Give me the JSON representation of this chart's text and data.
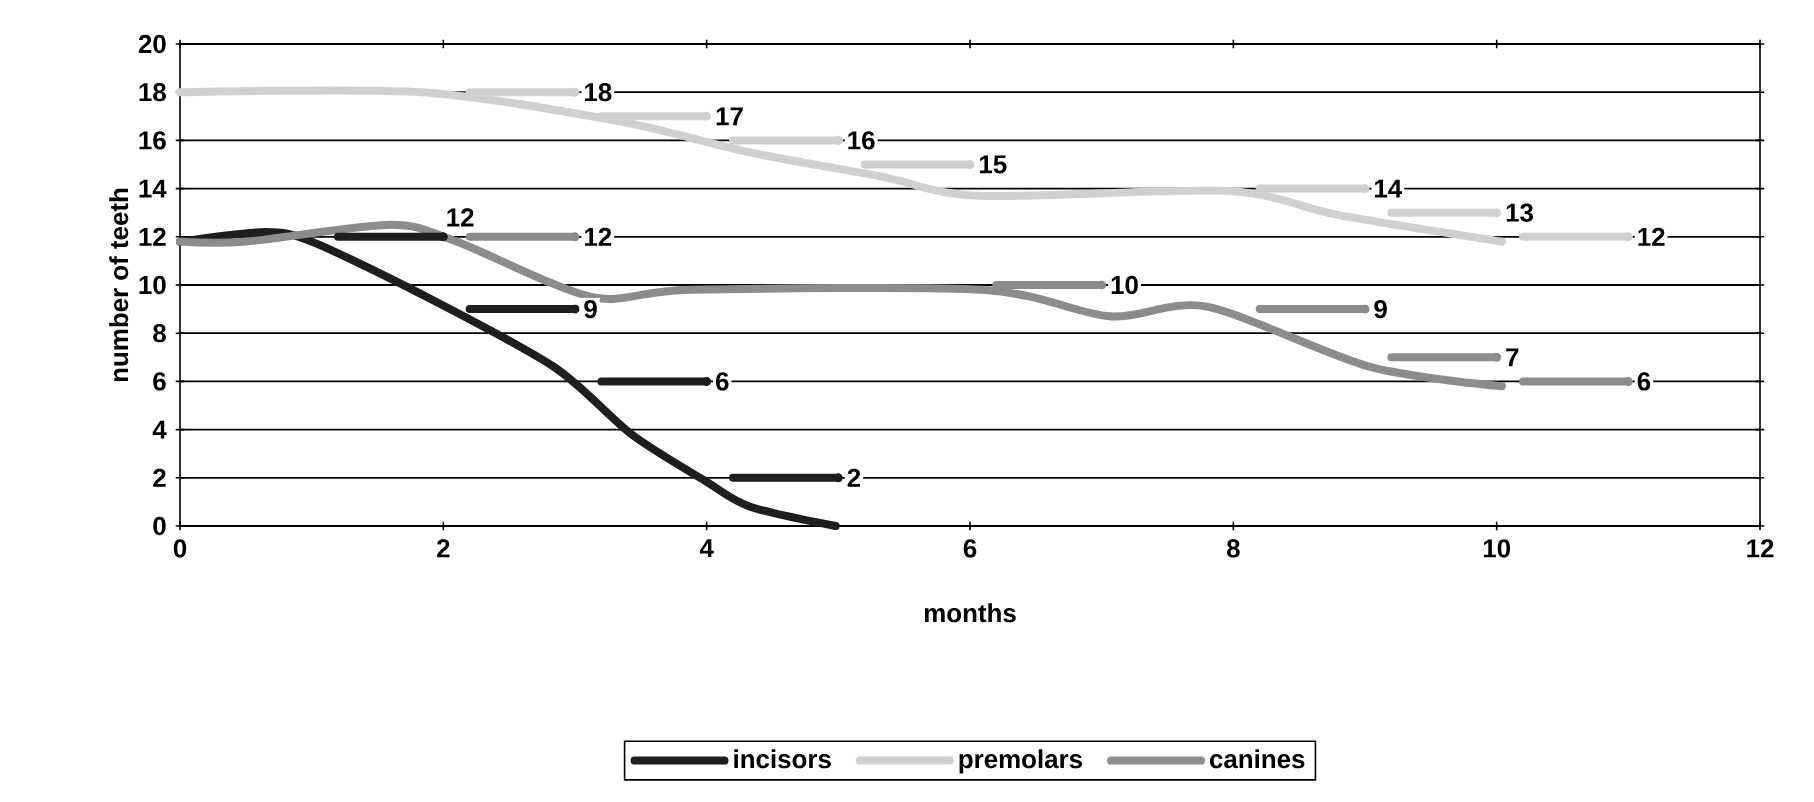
{
  "chart_data": {
    "type": "line",
    "xlabel": "months",
    "ylabel": "number of teeth",
    "xlim": [
      0,
      12
    ],
    "xticks": [
      0,
      2,
      4,
      6,
      8,
      10,
      12
    ],
    "ylim": [
      0,
      20
    ],
    "yticks": [
      0,
      2,
      4,
      6,
      8,
      10,
      12,
      14,
      16,
      18,
      20
    ],
    "grid": "y",
    "legend": "bottom",
    "series": [
      {
        "name": "incisors",
        "color": "#1e1e1e",
        "x": [
          0,
          0.65,
          1.0,
          1.84,
          2.84,
          3.43,
          3.98,
          4.33,
          4.98
        ],
        "values": [
          11.8,
          12.2,
          11.8,
          9.6,
          6.6,
          3.8,
          1.9,
          0.8,
          0
        ]
      },
      {
        "name": "premolars",
        "color": "#d0d0d0",
        "x": [
          0,
          1.84,
          3.33,
          4.33,
          5.33,
          6.07,
          7.96,
          8.8,
          10.04
        ],
        "values": [
          18,
          18,
          16.8,
          15.5,
          14.5,
          13.7,
          13.9,
          12.9,
          11.8
        ]
      },
      {
        "name": "canines",
        "color": "#8c8c8c",
        "x": [
          0,
          0.5,
          1.6,
          2.1,
          3.13,
          3.88,
          6.1,
          7.06,
          7.8,
          9.04,
          10.04
        ],
        "values": [
          11.8,
          11.8,
          12.5,
          11.8,
          9.5,
          9.8,
          9.8,
          8.7,
          9.1,
          6.6,
          5.8
        ]
      },
      {
        "type": "scatter",
        "color": "#1e1e1e",
        "x": [
          2,
          3,
          4,
          5
        ],
        "values": [
          12,
          9,
          6,
          2
        ],
        "xerrors": [
          [
            1.2,
            2
          ],
          [
            2.2,
            3
          ],
          [
            3.2,
            4
          ],
          [
            4.2,
            5
          ]
        ],
        "value_labels": [
          "12",
          "9",
          "6",
          "2"
        ]
      },
      {
        "type": "scatter",
        "color": "#d0d0d0",
        "x": [
          3,
          4,
          5,
          6,
          9,
          10,
          11
        ],
        "values": [
          18,
          17,
          16,
          15,
          14,
          13,
          12
        ],
        "xerrors": [
          [
            2.2,
            3
          ],
          [
            3.2,
            4
          ],
          [
            4.2,
            5
          ],
          [
            5.2,
            6
          ],
          [
            8.2,
            9
          ],
          [
            9.2,
            10
          ],
          [
            10.2,
            11
          ]
        ],
        "value_labels": [
          "18",
          "17",
          "16",
          "15",
          "14",
          "13",
          "12"
        ]
      },
      {
        "type": "scatter",
        "color": "#8c8c8c",
        "x": [
          3,
          7,
          9,
          10,
          11
        ],
        "values": [
          12,
          10,
          9,
          7,
          6
        ],
        "xerrors": [
          [
            2.2,
            3
          ],
          [
            6.2,
            7
          ],
          [
            8.2,
            9
          ],
          [
            9.2,
            10
          ],
          [
            10.2,
            11
          ]
        ],
        "value_labels": [
          "12",
          "10",
          "9",
          "7",
          "6"
        ]
      }
    ]
  }
}
